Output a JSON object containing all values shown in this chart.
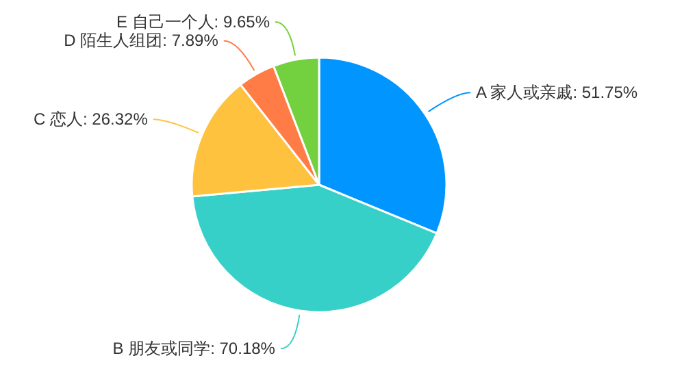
{
  "chart_data": {
    "type": "pie",
    "categories": [
      "A 家人或亲戚",
      "B 朋友或同学",
      "C 恋人",
      "D 陌生人组团",
      "E 自己一个人"
    ],
    "values": [
      51.75,
      70.18,
      26.32,
      7.89,
      9.65
    ],
    "value_labels": [
      "51.75%",
      "70.18%",
      "26.32%",
      "7.89%",
      "9.65%"
    ],
    "colors": [
      "#0095ff",
      "#37d0c9",
      "#ffc23f",
      "#ff7c46",
      "#73d03e"
    ]
  }
}
